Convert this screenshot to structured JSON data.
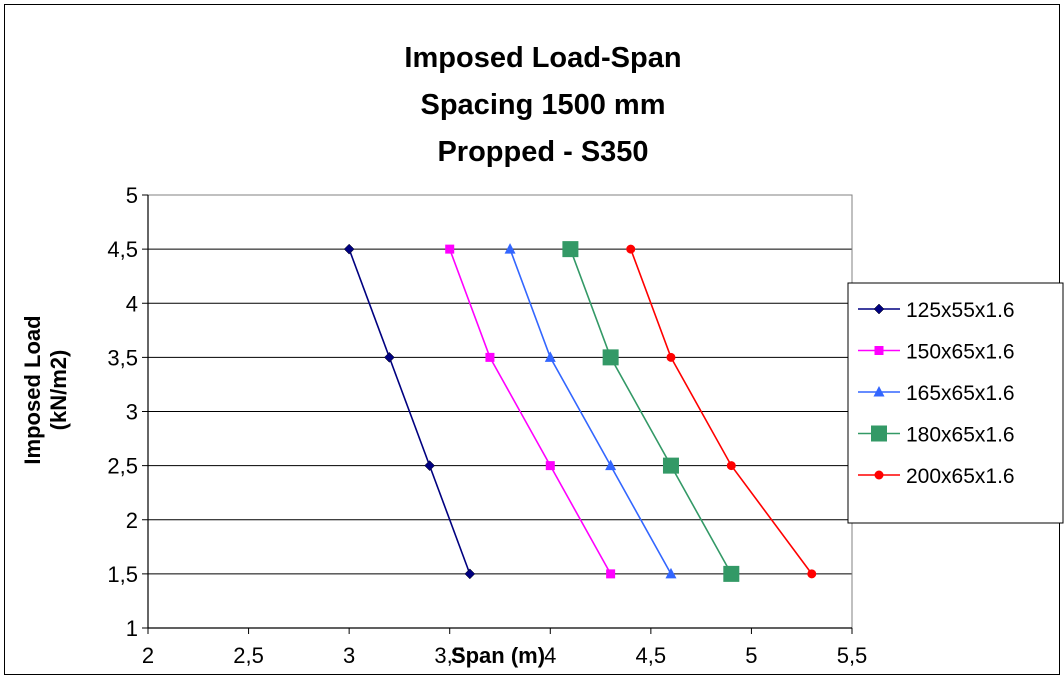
{
  "chart_data": {
    "type": "line",
    "title_lines": [
      "Imposed Load-Span",
      "Spacing 1500 mm",
      "Propped - S350"
    ],
    "xlabel": "Span (m)",
    "ylabel_lines": [
      "Imposed Load",
      "(kN/m2)"
    ],
    "xlim": [
      2,
      5.5
    ],
    "ylim": [
      1,
      5
    ],
    "xticks": [
      "2",
      "2,5",
      "3",
      "3,5",
      "4",
      "4,5",
      "5",
      "5,5"
    ],
    "yticks": [
      "1",
      "1,5",
      "2",
      "2,5",
      "3",
      "3,5",
      "4",
      "4,5",
      "5"
    ],
    "grid": "horizontal",
    "legend_position": "right",
    "series": [
      {
        "name": "125x55x1.6",
        "color": "#000080",
        "marker": "diamond",
        "points": [
          [
            3.0,
            4.5
          ],
          [
            3.2,
            3.5
          ],
          [
            3.4,
            2.5
          ],
          [
            3.6,
            1.5
          ]
        ]
      },
      {
        "name": "150x65x1.6",
        "color": "#ff00ff",
        "marker": "square",
        "points": [
          [
            3.5,
            4.5
          ],
          [
            3.7,
            3.5
          ],
          [
            4.0,
            2.5
          ],
          [
            4.3,
            1.5
          ]
        ]
      },
      {
        "name": "165x65x1.6",
        "color": "#3366ff",
        "marker": "triangle",
        "points": [
          [
            3.8,
            4.5
          ],
          [
            4.0,
            3.5
          ],
          [
            4.3,
            2.5
          ],
          [
            4.6,
            1.5
          ]
        ]
      },
      {
        "name": "180x65x1.6",
        "color": "#339966",
        "marker": "big-square",
        "points": [
          [
            4.1,
            4.5
          ],
          [
            4.3,
            3.5
          ],
          [
            4.6,
            2.5
          ],
          [
            4.9,
            1.5
          ]
        ]
      },
      {
        "name": "200x65x1.6",
        "color": "#ff0000",
        "marker": "circle",
        "points": [
          [
            4.4,
            4.5
          ],
          [
            4.6,
            3.5
          ],
          [
            4.9,
            2.5
          ],
          [
            5.3,
            1.5
          ]
        ]
      }
    ]
  }
}
